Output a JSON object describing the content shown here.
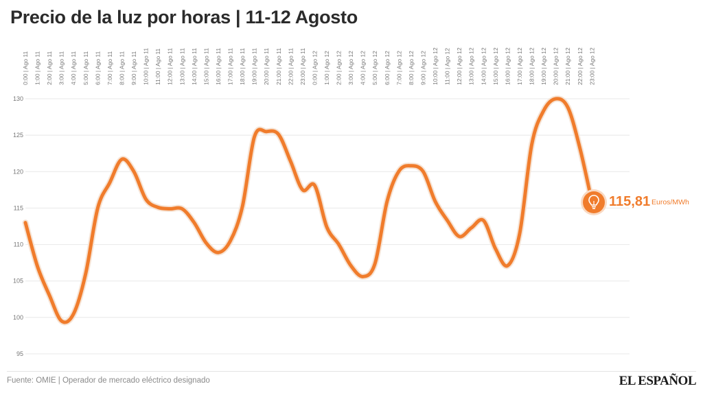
{
  "title": "Precio de la luz por horas | 11-12 Agosto",
  "source": "Fuente: OMIE | Operador de mercado eléctrico designado",
  "logo_text": "EL ESPAÑOL",
  "colors": {
    "line": "#f07c2c",
    "grid": "#e8e8e8",
    "axis_text": "#777777"
  },
  "callout": {
    "value": "115,81",
    "unit": "Euros/MWh",
    "icon": "lightbulb-icon"
  },
  "chart_data": {
    "type": "line",
    "title": "Precio de la luz por horas | 11-12 Agosto",
    "ylim": [
      95,
      130
    ],
    "yticks": [
      95,
      100,
      105,
      110,
      115,
      120,
      125,
      130
    ],
    "grid": true,
    "x": [
      "0:00 | Ago 11",
      "1:00 | Ago 11",
      "2:00 | Ago 11",
      "3:00 | Ago 11",
      "4:00 | Ago 11",
      "5:00 | Ago 11",
      "6:00 | Ago 11",
      "7:00 | Ago 11",
      "8:00 | Ago 11",
      "9:00 | Ago 11",
      "10:00 | Ago 11",
      "11:00 | Ago 11",
      "12:00 | Ago 11",
      "13:00 | Ago 11",
      "14:00 | Ago 11",
      "15:00 | Ago 11",
      "16:00 | Ago 11",
      "17:00 | Ago 11",
      "18:00 | Ago 11",
      "19:00 | Ago 11",
      "20:00 | Ago 11",
      "21:00 | Ago 11",
      "22:00 | Ago 11",
      "23:00 | Ago 11",
      "0:00 | Ago 12",
      "1:00 | Ago 12",
      "2:00 | Ago 12",
      "3:00 | Ago 12",
      "4:00 | Ago 12",
      "5:00 | Ago 12",
      "6:00 | Ago 12",
      "7:00 | Ago 12",
      "8:00 | Ago 12",
      "9:00 | Ago 12",
      "10:00 | Ago 12",
      "11:00 | Ago 12",
      "12:00 | Ago 12",
      "13:00 | Ago 12",
      "14:00 | Ago 12",
      "15:00 | Ago 12",
      "16:00 | Ago 12",
      "17:00 | Ago 12",
      "18:00 | Ago 12",
      "19:00 | Ago 12",
      "20:00 | Ago 12",
      "21:00 | Ago 12",
      "22:00 | Ago 12",
      "23:00 | Ago 12"
    ],
    "series": [
      {
        "values": [
          113.0,
          107.0,
          103.0,
          99.5,
          100.5,
          106.0,
          115.0,
          118.5,
          121.7,
          120.0,
          116.2,
          115.1,
          114.9,
          114.9,
          113.0,
          110.2,
          108.9,
          110.5,
          115.2,
          124.8,
          125.5,
          125.1,
          121.4,
          117.5,
          118.1,
          112.4,
          110.0,
          107.1,
          105.6,
          107.4,
          115.9,
          120.1,
          120.8,
          120.0,
          115.9,
          113.3,
          111.1,
          112.3,
          113.3,
          109.4,
          107.1,
          111.5,
          123.7,
          128.4,
          130.0,
          128.8,
          123.2,
          115.81
        ]
      }
    ]
  }
}
